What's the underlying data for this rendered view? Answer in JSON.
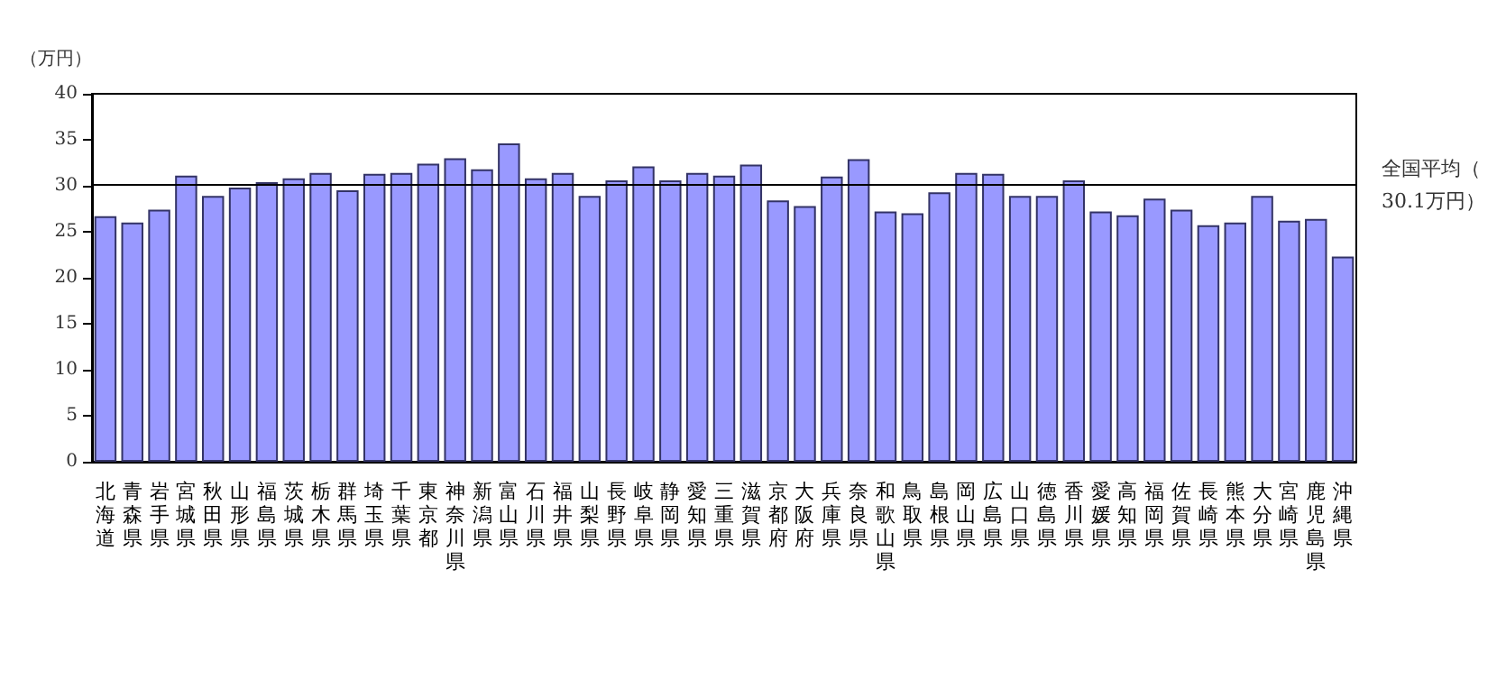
{
  "chart_data": {
    "type": "bar",
    "ylabel": "（万円）",
    "categories": [
      "北海道",
      "青森県",
      "岩手県",
      "宮城県",
      "秋田県",
      "山形県",
      "福島県",
      "茨城県",
      "栃木県",
      "群馬県",
      "埼玉県",
      "千葉県",
      "東京都",
      "神奈川県",
      "新潟県",
      "富山県",
      "石川県",
      "福井県",
      "山梨県",
      "長野県",
      "岐阜県",
      "静岡県",
      "愛知県",
      "三重県",
      "滋賀県",
      "京都府",
      "大阪府",
      "兵庫県",
      "奈良県",
      "和歌山県",
      "鳥取県",
      "島根県",
      "岡山県",
      "広島県",
      "山口県",
      "徳島県",
      "香川県",
      "愛媛県",
      "高知県",
      "福岡県",
      "佐賀県",
      "長崎県",
      "熊本県",
      "大分県",
      "宮崎県",
      "鹿児島県",
      "沖縄県"
    ],
    "values": [
      26.7,
      26.0,
      27.4,
      31.1,
      28.9,
      29.8,
      30.4,
      30.8,
      31.4,
      29.5,
      31.3,
      31.4,
      32.4,
      33.0,
      31.8,
      34.6,
      30.8,
      31.4,
      28.9,
      30.6,
      32.1,
      30.6,
      31.4,
      31.1,
      32.3,
      28.4,
      27.8,
      31.0,
      32.9,
      27.2,
      27.0,
      29.3,
      31.4,
      31.3,
      28.9,
      28.9,
      30.6,
      27.2,
      26.8,
      28.6,
      27.4,
      25.7,
      26.0,
      28.9,
      26.2,
      26.4,
      22.3
    ],
    "color": "#9999ff",
    "ylim": [
      0,
      40
    ],
    "yticks": [
      0,
      5,
      10,
      15,
      20,
      25,
      30,
      35,
      40
    ],
    "grid": false,
    "ref_lines": [
      {
        "axis": "y",
        "value": 30.1,
        "label": "全国平均（30.1万円）",
        "color": "#000000"
      }
    ]
  }
}
